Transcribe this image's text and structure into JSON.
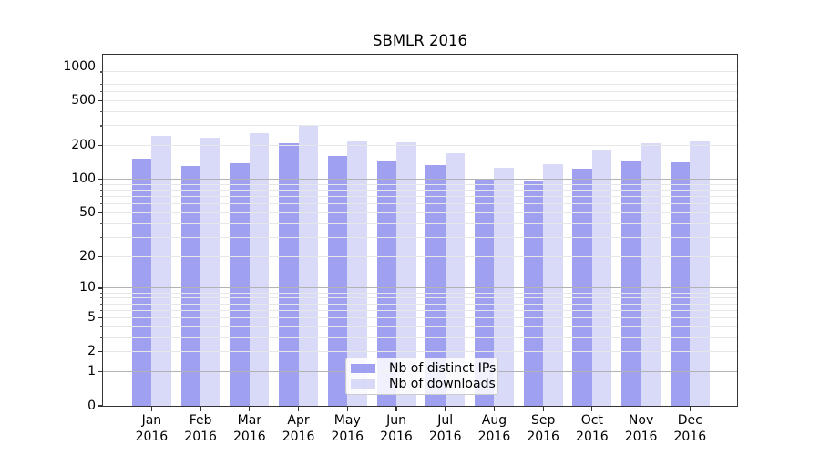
{
  "chart_data": {
    "type": "bar",
    "title": "SBMLR 2016",
    "year": "2016",
    "categories": [
      "Jan",
      "Feb",
      "Mar",
      "Apr",
      "May",
      "Jun",
      "Jul",
      "Aug",
      "Sep",
      "Oct",
      "Nov",
      "Dec"
    ],
    "series": [
      {
        "name": "Nb of distinct IPs",
        "color": "#a0a0f0",
        "values": [
          153,
          131,
          140,
          210,
          163,
          148,
          135,
          102,
          97,
          124,
          146,
          141
        ]
      },
      {
        "name": "Nb of downloads",
        "color": "#d9d9f8",
        "values": [
          245,
          233,
          258,
          302,
          220,
          213,
          172,
          126,
          137,
          186,
          212,
          217
        ]
      }
    ],
    "yscale": "log10(1+v)",
    "yticks": [
      0,
      1,
      2,
      5,
      10,
      20,
      50,
      100,
      200,
      500,
      1000
    ],
    "ylim": [
      0,
      1330
    ],
    "grid": {
      "major_at": [
        1,
        10,
        100,
        1000
      ],
      "minor_decades": [
        1,
        10,
        100
      ],
      "minor_multiples": [
        2,
        3,
        4,
        5,
        6,
        7,
        8,
        9
      ]
    },
    "legend_position": "lower center",
    "xlabel": "",
    "ylabel": ""
  }
}
